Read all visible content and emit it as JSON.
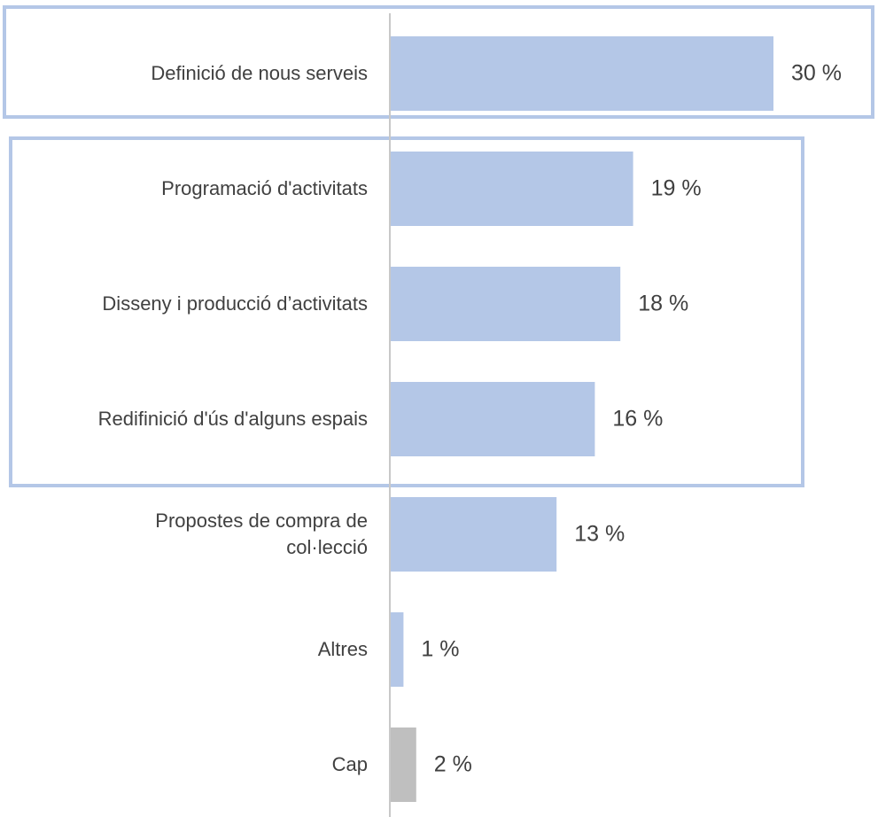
{
  "chart_data": {
    "type": "barh",
    "categories": [
      "Definició de nous serveis",
      "Programació d'activitats",
      "Disseny i producció d’activitats",
      "Redifinició d'ús d'alguns espais",
      "Propostes de compra de\ncol·lecció",
      "Altres",
      "Cap"
    ],
    "values": [
      30,
      19,
      18,
      16,
      13,
      1,
      2
    ],
    "value_labels": [
      "30 %",
      "19 %",
      "18 %",
      "16 %",
      "13 %",
      "1 %",
      "2 %"
    ],
    "colors": [
      "#b4c7e7",
      "#b4c7e7",
      "#b4c7e7",
      "#b4c7e7",
      "#b4c7e7",
      "#b4c7e7",
      "#bfbfbf"
    ]
  }
}
